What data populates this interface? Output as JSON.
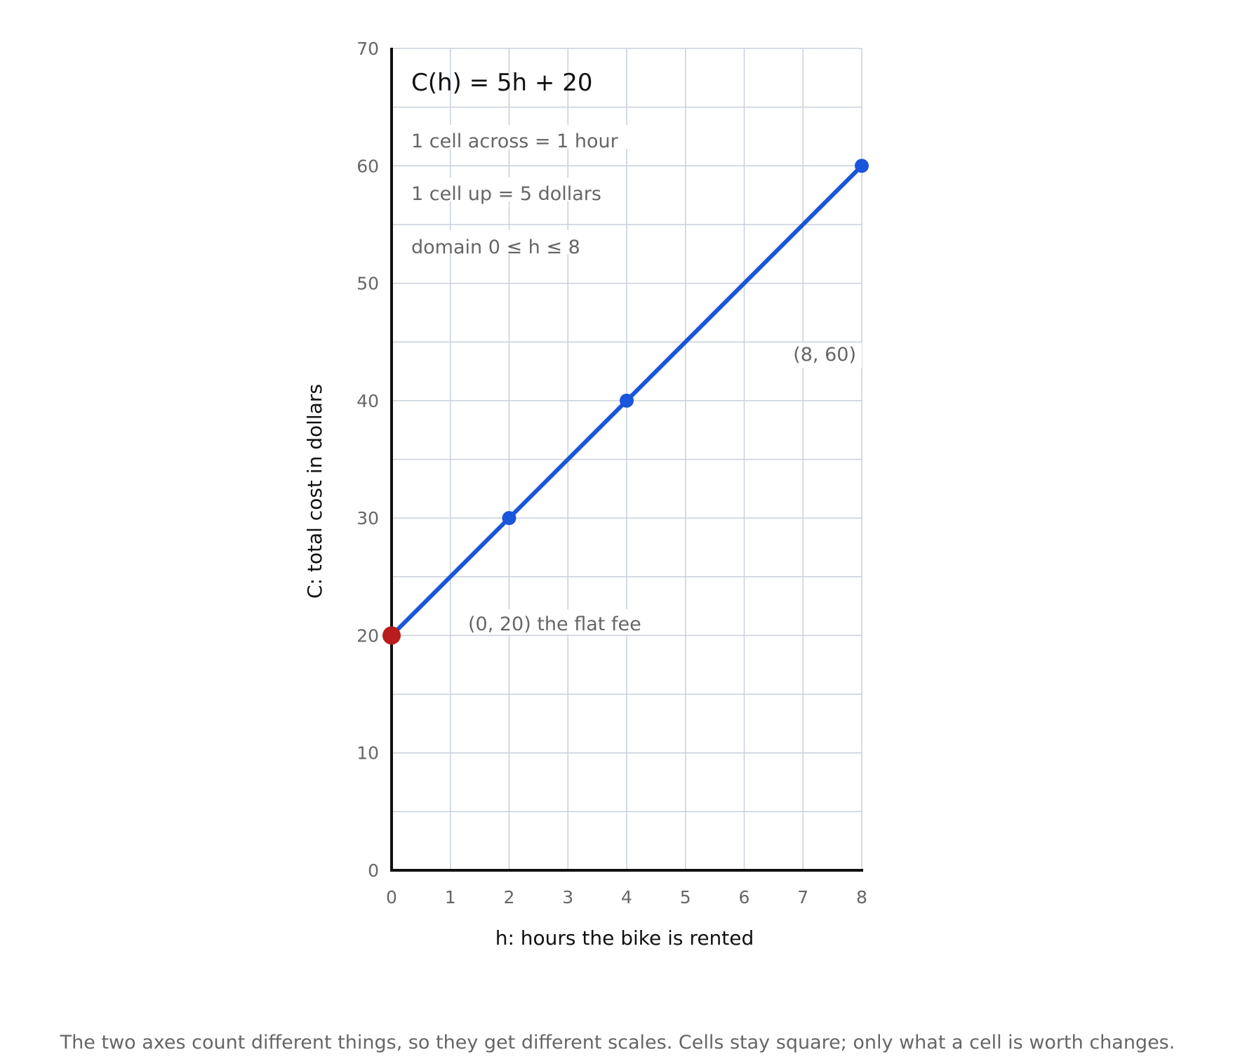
{
  "chart_data": {
    "type": "line",
    "function": "C(h) = 5h + 20",
    "xlabel": "h: hours the bike is rented",
    "ylabel": "C: total cost in dollars",
    "xlim": [
      0,
      8
    ],
    "ylim": [
      0,
      70
    ],
    "x_ticks": [
      "0",
      "1",
      "2",
      "3",
      "4",
      "5",
      "6",
      "7",
      "8"
    ],
    "y_ticks": [
      "0",
      "10",
      "20",
      "30",
      "40",
      "50",
      "60",
      "70"
    ],
    "x_grid_step": 1,
    "y_grid_step": 5,
    "grid": true,
    "series": [
      {
        "x": [
          0,
          8
        ],
        "y": [
          20,
          60
        ],
        "color": "#1a56db"
      }
    ],
    "points": [
      {
        "x": 0,
        "y": 20,
        "color": "#b91c1c"
      },
      {
        "x": 2,
        "y": 30,
        "color": "#1a56db"
      },
      {
        "x": 4,
        "y": 40,
        "color": "#1a56db"
      },
      {
        "x": 8,
        "y": 60,
        "color": "#1a56db"
      }
    ],
    "notes": {
      "scale_x": "1 cell across = 1 hour",
      "scale_y": "1 cell up = 5 dollars",
      "domain": "domain 0 ≤ h ≤ 8"
    },
    "annotations": {
      "flat_fee": "(0, 20) the flat fee",
      "end_point": "(8, 60)"
    },
    "caption": "The two axes count different things, so they get different scales. Cells stay square; only what a cell is worth changes."
  },
  "colors": {
    "line": "#1a56db",
    "highlight": "#b91c1c",
    "grid": "#c8d0dc",
    "axis": "#111111",
    "muted_text": "#666666"
  }
}
